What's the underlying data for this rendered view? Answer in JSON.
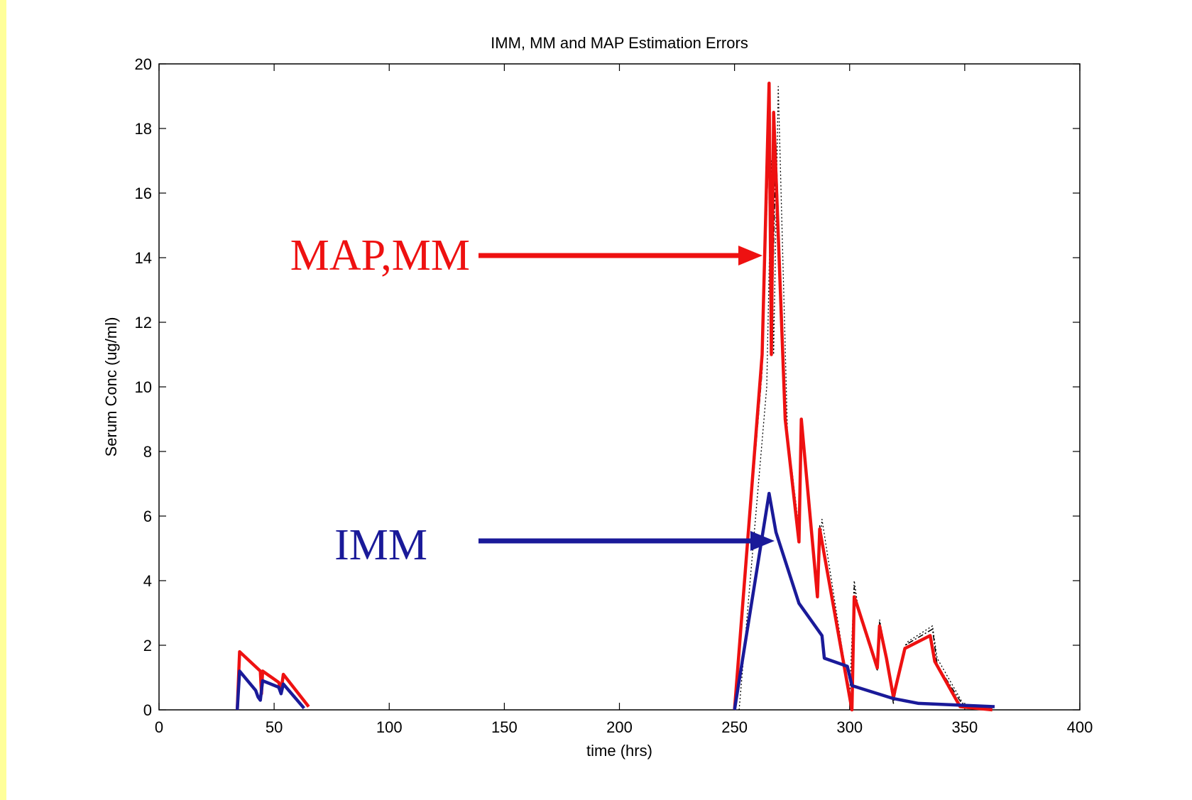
{
  "colors": {
    "page_border": "#ffff99",
    "background": "#ffffff",
    "map_mm": "#ee1111",
    "imm": "#1a1a99",
    "other": "#000000"
  },
  "chart_data": {
    "type": "line",
    "title": "IMM, MM and MAP Estimation Errors",
    "xlabel": "time (hrs)",
    "ylabel": "Serum Conc (ug/ml)",
    "xlim": [
      0,
      400
    ],
    "ylim": [
      0,
      20
    ],
    "xticks": [
      0,
      50,
      100,
      150,
      200,
      250,
      300,
      350,
      400
    ],
    "yticks": [
      0,
      2,
      4,
      6,
      8,
      10,
      12,
      14,
      16,
      18,
      20
    ],
    "grid": false,
    "series": [
      {
        "color": "#ee1111",
        "points": [
          [
            34,
            0
          ],
          [
            35,
            1.8
          ],
          [
            44,
            1.2
          ],
          [
            44.5,
            0.5
          ],
          [
            45,
            1.2
          ],
          [
            52,
            0.85
          ],
          [
            53,
            0.6
          ],
          [
            54,
            1.1
          ],
          [
            65,
            0.1
          ],
          [
            null,
            null
          ],
          [
            250,
            0
          ],
          [
            262,
            11
          ],
          [
            265,
            19.4
          ],
          [
            266,
            11
          ],
          [
            267,
            18.5
          ],
          [
            272,
            9
          ],
          [
            278,
            5.2
          ],
          [
            279,
            9
          ],
          [
            286,
            3.5
          ],
          [
            287,
            5.6
          ],
          [
            301,
            0
          ],
          [
            302,
            3.5
          ],
          [
            303,
            3.3
          ],
          [
            312,
            1.3
          ],
          [
            313,
            2.6
          ],
          [
            316,
            1.6
          ],
          [
            319,
            0.4
          ],
          [
            324,
            1.9
          ],
          [
            335,
            2.3
          ],
          [
            337,
            1.5
          ],
          [
            348,
            0.1
          ],
          [
            362,
            0
          ]
        ]
      },
      {
        "color": "#1a1a99",
        "points": [
          [
            34,
            0
          ],
          [
            35,
            1.2
          ],
          [
            42,
            0.6
          ],
          [
            43,
            0.4
          ],
          [
            44,
            0.3
          ],
          [
            45,
            0.9
          ],
          [
            52,
            0.7
          ],
          [
            53,
            0.5
          ],
          [
            54,
            0.8
          ],
          [
            63,
            0.05
          ],
          [
            null,
            null
          ],
          [
            250,
            0
          ],
          [
            265,
            6.7
          ],
          [
            268,
            5.5
          ],
          [
            278,
            3.3
          ],
          [
            288,
            2.3
          ],
          [
            289,
            1.6
          ],
          [
            299,
            1.35
          ],
          [
            301,
            0.75
          ],
          [
            319,
            0.35
          ],
          [
            330,
            0.2
          ],
          [
            363,
            0.1
          ]
        ]
      },
      {
        "color": "#000000",
        "style": "dashdot",
        "points": [
          [
            250,
            0
          ],
          [
            262,
            10.5
          ],
          [
            265,
            18
          ],
          [
            266,
            11
          ],
          [
            268,
            17.5
          ],
          [
            272,
            8.8
          ],
          [
            278,
            5.4
          ],
          [
            279,
            8.7
          ],
          [
            286,
            3.6
          ],
          [
            287,
            5.7
          ],
          [
            301,
            0.2
          ],
          [
            302,
            3.8
          ],
          [
            303,
            3.2
          ],
          [
            312,
            1.2
          ],
          [
            313,
            2.7
          ],
          [
            316,
            1.5
          ],
          [
            319,
            0.2
          ],
          [
            324,
            2
          ],
          [
            336,
            2.5
          ],
          [
            338,
            1.4
          ],
          [
            350,
            0.05
          ],
          [
            362,
            0
          ]
        ]
      },
      {
        "color": "#000000",
        "style": "dotted",
        "points": [
          [
            252,
            0
          ],
          [
            264,
            10
          ],
          [
            266,
            17
          ],
          [
            267,
            11
          ],
          [
            269,
            19.3
          ],
          [
            273,
            8.6
          ],
          [
            278,
            5.6
          ],
          [
            279,
            8.8
          ],
          [
            286,
            3.8
          ],
          [
            288,
            5.9
          ],
          [
            300,
            0.4
          ],
          [
            302,
            4.0
          ],
          [
            304,
            3.0
          ],
          [
            312,
            1.4
          ],
          [
            313,
            2.8
          ],
          [
            316,
            1.7
          ],
          [
            319,
            0.3
          ],
          [
            325,
            2.1
          ],
          [
            336,
            2.6
          ],
          [
            338,
            1.6
          ],
          [
            350,
            0.1
          ],
          [
            362,
            0.05
          ]
        ]
      }
    ],
    "annotations": [
      {
        "text": "MAP,MM",
        "color": "#ee1111",
        "arrow_to": [
          262,
          14
        ]
      },
      {
        "text": "IMM",
        "color": "#1a1a99",
        "arrow_to": [
          265,
          5.3
        ]
      }
    ]
  }
}
